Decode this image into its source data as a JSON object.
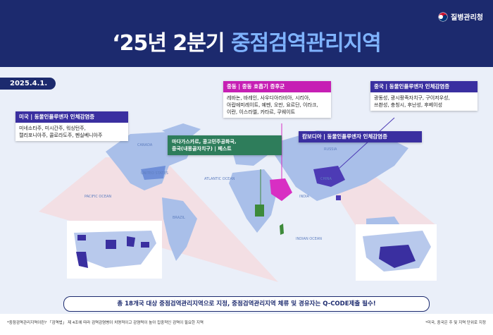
{
  "header": {
    "logo": "질병관리청",
    "title_part1": "‘25년 2분기",
    "title_part2": "중점검역관리지역",
    "date": "2025.4.1."
  },
  "map_labels": [
    "CANADA",
    "UNITED STATES",
    "RUSSIA",
    "CHINA",
    "INDIA",
    "BRAZIL",
    "PACIFIC OCEAN",
    "ATLANTIC OCEAN",
    "INDIAN OCEAN"
  ],
  "us_box": {
    "heading": "미국 | 동물인플루엔자 인체감염증",
    "body": [
      "미네소타주, 미시간주, 워싱턴주,",
      "캘리포니아주, 콜로라도주, 펜실베니아주"
    ]
  },
  "plague_box": {
    "body": [
      "마다가스카르, 콩고민주공화국,",
      "중국(내몽골자치구) | 페스트"
    ]
  },
  "mers_box": {
    "heading": "중동 | 중동 호흡기 증후군",
    "body": [
      "레바논, 바레인, 사우디아라비아, 시리아,",
      "아랍에미레이트, 예멘, 오만, 요르단, 이라크,",
      "이란, 이스라엘, 카타르, 쿠웨이트"
    ]
  },
  "cambodia_box": {
    "heading": "캄보디아 | 동물인플루엔자 인체감염증"
  },
  "china_box": {
    "heading": "중국 | 동물인플루엔자 인체감염증",
    "body": [
      "광동성, 광시좡족자치구, 구이저우성,",
      "쓰촨성, 충칭시, 후난성, 후베이성"
    ]
  },
  "banner": "총 18개국 대상 중점검역관리지역으로 지정, 중점검역관리지역 체류 및 경유자는 Q-CODE제출 필수!",
  "footnotes": {
    "left": "*중점검역관리지역이란? 「검역법」 제 4조에 따라 검역감염병이 치명적이고 감염력이 높아 집중적인 검역이 필요한 지역",
    "right": "*미국, 중국은 주 및 지역 단위로 지정"
  }
}
